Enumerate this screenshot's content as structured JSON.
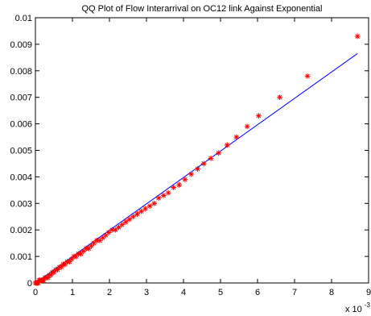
{
  "chart_data": {
    "type": "scatter",
    "title": "QQ Plot of Flow Interarrival on OC12 link Against Exponential",
    "xlabel": "",
    "ylabel": "",
    "x_multiplier_label": "x 10",
    "x_multiplier_exponent": "-3",
    "xlim": [
      0,
      9
    ],
    "ylim": [
      0,
      0.01
    ],
    "x_ticks": [
      0,
      1,
      2,
      3,
      4,
      5,
      6,
      7,
      8,
      9
    ],
    "x_tick_labels": [
      "0",
      "1",
      "2",
      "3",
      "4",
      "5",
      "6",
      "7",
      "8",
      "9"
    ],
    "y_ticks": [
      0,
      0.001,
      0.002,
      0.003,
      0.004,
      0.005,
      0.006,
      0.007,
      0.008,
      0.009,
      0.01
    ],
    "y_tick_labels": [
      "0",
      "0.001",
      "0.002",
      "0.003",
      "0.004",
      "0.005",
      "0.006",
      "0.007",
      "0.008",
      "0.009",
      "0.01"
    ],
    "grid": false,
    "legend": "none",
    "colors": {
      "points": "#ff0000",
      "reference_line": "#0000ff",
      "axes": "#000000"
    },
    "marker": "asterisk",
    "series": [
      {
        "marker": "asterisk",
        "color": "#ff0000",
        "points": [
          [
            0.0,
            0.0
          ],
          [
            0.02,
            0.0
          ],
          [
            0.04,
            0.0
          ],
          [
            0.06,
            0.0
          ],
          [
            0.08,
            0.0
          ],
          [
            0.1,
            0.0001
          ],
          [
            0.13,
            0.0001
          ],
          [
            0.16,
            0.0001
          ],
          [
            0.19,
            0.0001
          ],
          [
            0.22,
            0.0001
          ],
          [
            0.26,
            0.0002
          ],
          [
            0.3,
            0.0002
          ],
          [
            0.34,
            0.0002
          ],
          [
            0.38,
            0.0003
          ],
          [
            0.42,
            0.0003
          ],
          [
            0.46,
            0.0004
          ],
          [
            0.5,
            0.0004
          ],
          [
            0.55,
            0.0005
          ],
          [
            0.6,
            0.0005
          ],
          [
            0.65,
            0.0006
          ],
          [
            0.7,
            0.0006
          ],
          [
            0.75,
            0.0007
          ],
          [
            0.8,
            0.0007
          ],
          [
            0.86,
            0.0008
          ],
          [
            0.92,
            0.0008
          ],
          [
            0.98,
            0.0009
          ],
          [
            1.04,
            0.001
          ],
          [
            1.1,
            0.001
          ],
          [
            1.16,
            0.0011
          ],
          [
            1.23,
            0.0011
          ],
          [
            1.3,
            0.0012
          ],
          [
            1.37,
            0.0013
          ],
          [
            1.44,
            0.0013
          ],
          [
            1.51,
            0.0014
          ],
          [
            1.58,
            0.0015
          ],
          [
            1.66,
            0.0016
          ],
          [
            1.74,
            0.0016
          ],
          [
            1.82,
            0.0017
          ],
          [
            1.9,
            0.0018
          ],
          [
            1.98,
            0.0019
          ],
          [
            2.07,
            0.002
          ],
          [
            2.16,
            0.002
          ],
          [
            2.25,
            0.0021
          ],
          [
            2.34,
            0.0022
          ],
          [
            2.44,
            0.0023
          ],
          [
            2.54,
            0.0024
          ],
          [
            2.64,
            0.0025
          ],
          [
            2.75,
            0.0026
          ],
          [
            2.86,
            0.0027
          ],
          [
            2.97,
            0.0028
          ],
          [
            3.09,
            0.0029
          ],
          [
            3.21,
            0.003
          ],
          [
            3.33,
            0.0032
          ],
          [
            3.46,
            0.0033
          ],
          [
            3.59,
            0.0034
          ],
          [
            3.73,
            0.0036
          ],
          [
            3.88,
            0.0037
          ],
          [
            4.04,
            0.0039
          ],
          [
            4.21,
            0.0041
          ],
          [
            4.38,
            0.0043
          ],
          [
            4.55,
            0.0045
          ],
          [
            4.74,
            0.0047
          ],
          [
            4.95,
            0.0049
          ],
          [
            5.18,
            0.0052
          ],
          [
            5.43,
            0.0055
          ],
          [
            5.72,
            0.0059
          ],
          [
            6.03,
            0.0063
          ],
          [
            6.6,
            0.007
          ],
          [
            7.35,
            0.0078
          ],
          [
            8.7,
            0.0093
          ]
        ]
      },
      {
        "marker": "line",
        "color": "#0000ff",
        "points": [
          [
            0,
            0
          ],
          [
            8.7,
            0.00865
          ]
        ]
      }
    ]
  }
}
